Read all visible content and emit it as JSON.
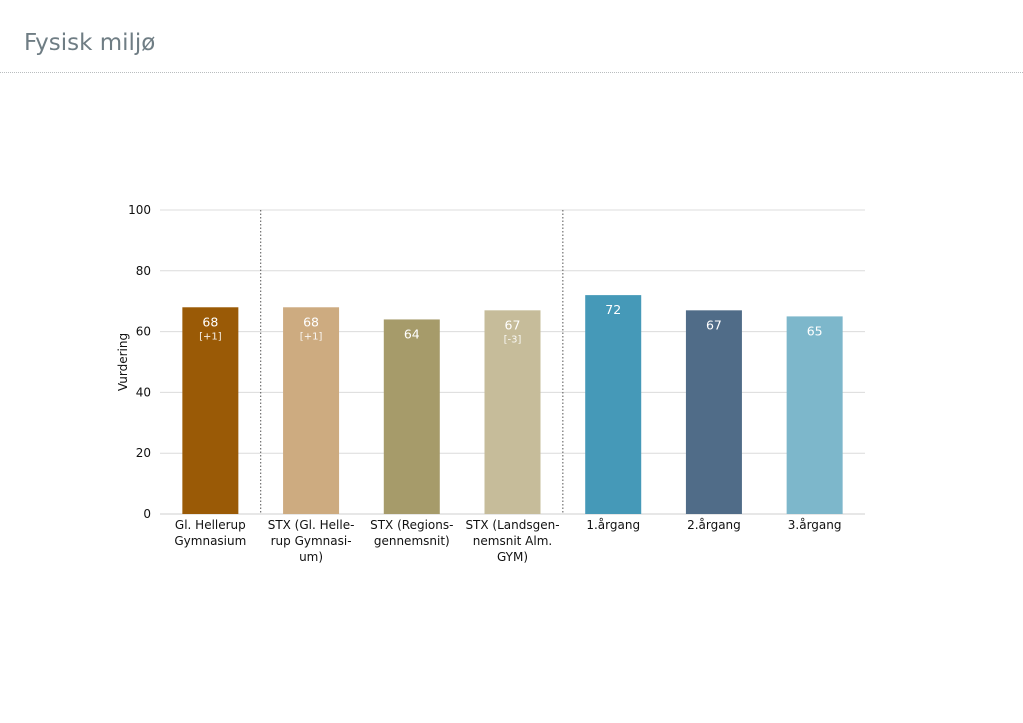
{
  "page": {
    "title": "Fysisk miljø"
  },
  "chart_data": {
    "type": "bar",
    "ylabel": "Vurdering",
    "ylim": [
      0,
      100
    ],
    "yticks": [
      0,
      20,
      40,
      60,
      80,
      100
    ],
    "grid": true,
    "group_separators_after": [
      0,
      3
    ],
    "bars": [
      {
        "label_lines": [
          "Gl. Hellerup",
          "Gymnasium"
        ],
        "value": 68,
        "delta": "[+1]",
        "color": "#9a5a06"
      },
      {
        "label_lines": [
          "STX (Gl. Helle-",
          "rup Gymnasi-",
          "um)"
        ],
        "value": 68,
        "delta": "[+1]",
        "color": "#cdab80"
      },
      {
        "label_lines": [
          "STX (Regions-",
          "gennemsnit)"
        ],
        "value": 64,
        "delta": "",
        "color": "#a69b6a"
      },
      {
        "label_lines": [
          "STX (Landsgen-",
          "nemsnit Alm.",
          "GYM)"
        ],
        "value": 67,
        "delta": "[-3]",
        "color": "#c6bc9a"
      },
      {
        "label_lines": [
          "1.årgang"
        ],
        "value": 72,
        "delta": "",
        "color": "#4599b8"
      },
      {
        "label_lines": [
          "2.årgang"
        ],
        "value": 67,
        "delta": "",
        "color": "#506c88"
      },
      {
        "label_lines": [
          "3.årgang"
        ],
        "value": 65,
        "delta": "",
        "color": "#7db7cb"
      }
    ]
  }
}
